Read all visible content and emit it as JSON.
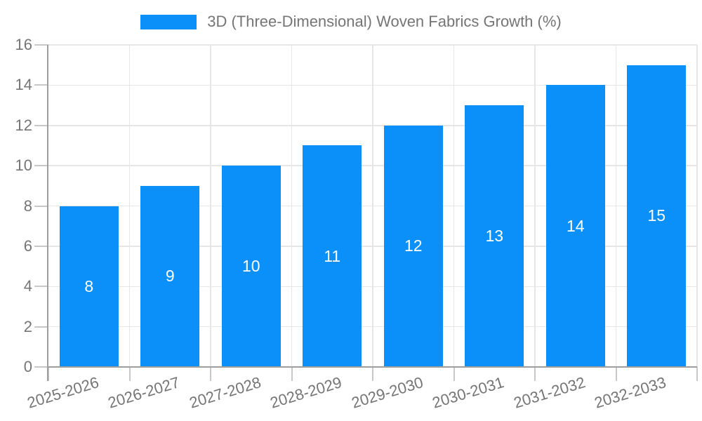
{
  "legend": {
    "label": "3D (Three-Dimensional) Woven Fabrics Growth (%)"
  },
  "chart_data": {
    "type": "bar",
    "title": "3D (Three-Dimensional) Woven Fabrics Growth (%)",
    "categories": [
      "2025-2026",
      "2026-2027",
      "2027-2028",
      "2028-2029",
      "2029-2030",
      "2030-2031",
      "2031-2032",
      "2032-2033"
    ],
    "values": [
      8,
      9,
      10,
      11,
      12,
      13,
      14,
      15
    ],
    "bar_value_labels": [
      "8",
      "9",
      "10",
      "11",
      "12",
      "13",
      "14",
      "15"
    ],
    "xlabel": "",
    "ylabel": "",
    "ylim": [
      0,
      16
    ],
    "ytick_step": 2,
    "yticks": [
      "0",
      "2",
      "4",
      "6",
      "8",
      "10",
      "12",
      "14",
      "16"
    ],
    "grid": true,
    "legend_position": "top-center",
    "colors": {
      "bar": "#0a90f8",
      "bar_label": "#ffffff",
      "axis_text": "#757575",
      "grid_line": "#e6e6e6",
      "axis_line": "#9e9e9e",
      "tick": "#c8c8c8",
      "background": "#ffffff"
    }
  }
}
